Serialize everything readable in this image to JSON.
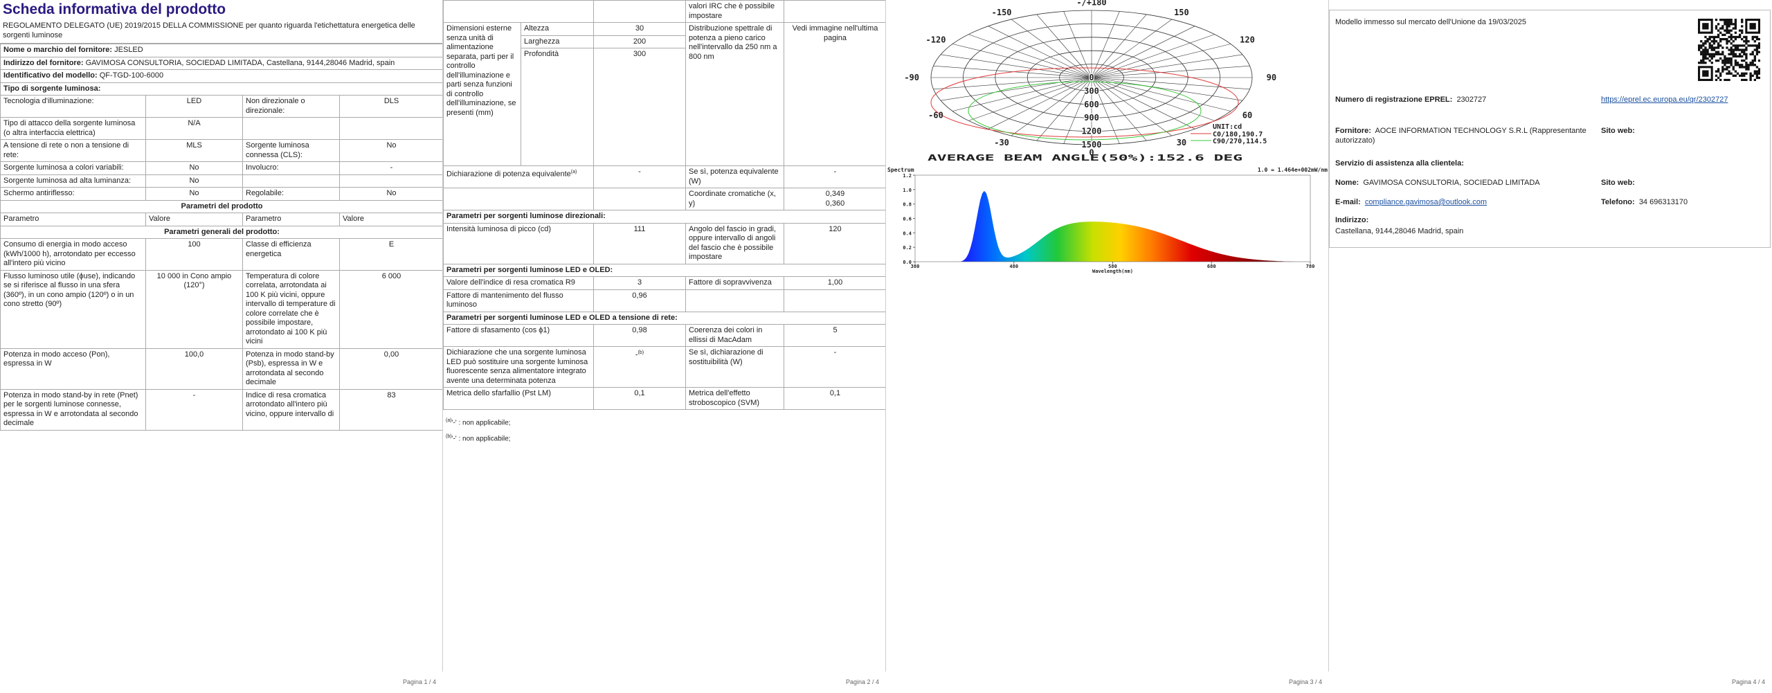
{
  "page1": {
    "title": "Scheda informativa del prodotto",
    "regulation": "REGOLAMENTO DELEGATO (UE) 2019/2015 DELLA COMMISSIONE per quanto riguarda l'etichettatura energetica delle sorgenti luminose",
    "supplier": [
      [
        "Nome o marchio del fornitore:",
        "JESLED"
      ],
      [
        "Indirizzo del fornitore:",
        "GAVIMOSA CONSULTORIA, SOCIEDAD LIMITADA, Castellana, 9144,28046 Madrid, spain"
      ],
      [
        "Identificativo del modello:",
        "QF-TGD-100-6000"
      ]
    ],
    "rows": [
      [
        "Tipo di sorgente luminosa:"
      ],
      [
        "Tecnologia d'illuminazione:",
        "LED",
        "Non direzionale o direzionale:",
        "DLS"
      ],
      [
        "Tipo di attacco della sorgente luminosa\n(o altra interfaccia elettrica)",
        "N/A"
      ],
      [
        "A tensione di rete o non a tensione di rete:",
        "MLS",
        "Sorgente luminosa connessa (CLS):",
        "No"
      ],
      [
        "Sorgente luminosa a colori variabili:",
        "No",
        "Involucro:",
        "-"
      ],
      [
        "Sorgente luminosa ad alta luminanza:",
        "No"
      ],
      [
        "Schermo antiriflesso:",
        "No",
        "Regolabile:",
        "No"
      ],
      [
        "Parametri del prodotto"
      ],
      [
        "Parametro",
        "Valore",
        "Parametro",
        "Valore"
      ],
      [
        "Parametri generali del prodotto:"
      ],
      [
        "Consumo di energia in modo acceso (kWh/1000 h), arrotondato per eccesso all'intero più vicino",
        "100",
        "Classe di efficienza energetica",
        "E"
      ],
      [
        "Flusso luminoso utile (ϕuse), indicando se si riferisce al flusso in una sfera (360º), in un cono ampio (120º) o in un cono stretto (90º)",
        "10 000 in Cono ampio (120°)",
        "Temperatura di colore correlata, arrotondata ai 100 K più vicini, oppure intervallo di temperature di colore correlate che è possibile impostare, arrotondato ai 100 K più vicini",
        "6 000"
      ],
      [
        "Potenza in modo acceso (Pon), espressa in W",
        "100,0",
        "Potenza in modo stand-by (Psb), espressa in W e arrotondata al secondo decimale",
        "0,00"
      ],
      [
        "Potenza in modo stand-by in rete (Pnet) per le sorgenti luminose connesse, espressa in W e arrotondata al secondo decimale",
        "-",
        "Indice di resa cromatica arrotondato all'intero più vicino, oppure intervallo di",
        "83"
      ]
    ],
    "footer": "Pagina 1 / 4"
  },
  "page2": {
    "rows": [
      [
        "valori IRC che è possibile impostare"
      ],
      [
        "Dimensioni esterne senza unità di alimentazione separata, parti per il controllo dell'illuminazione e parti senza funzioni di controllo dell'illuminazione, se presenti (mm)",
        "Altezza",
        "30",
        "Larghezza",
        "200",
        "Profondità",
        "300",
        "Distribuzione spettrale di potenza a pieno carico nell'intervallo da 250 nm a 800 nm",
        "Vedi immagine nell'ultima pagina"
      ],
      [
        "Dichiarazione di potenza equivalente",
        "(a)",
        "-",
        "Se sì, potenza equivalente (W)",
        "-"
      ],
      [
        "Coordinate cromatiche (x, y)",
        "0,349\n0,360"
      ],
      [
        "Parametri per sorgenti luminose direzionali:"
      ],
      [
        "Intensità luminosa di picco (cd)",
        "111",
        "Angolo del fascio in gradi, oppure intervallo di angoli del fascio che è possibile impostare",
        "120"
      ],
      [
        "Parametri per sorgenti luminose LED e OLED:"
      ],
      [
        "Valore dell'indice di resa cromatica R9",
        "3",
        "Fattore di sopravvivenza",
        "1,00"
      ],
      [
        "Fattore di mantenimento del flusso luminoso",
        "0,96"
      ],
      [
        "Parametri per sorgenti luminose LED e OLED a tensione di rete:"
      ],
      [
        "Fattore di sfasamento (cos ϕ1)",
        "0,98",
        "Coerenza dei colori in ellissi di MacAdam",
        "5"
      ],
      [
        "Dichiarazione che una sorgente luminosa LED può sostituire una sorgente luminosa fluorescente senza alimentatore integrato avente una determinata potenza",
        "-",
        "(b)",
        "Se sì, dichiarazione di sostituibilità (W)",
        "-"
      ],
      [
        "Metrica dello sfarfallio (Pst LM)",
        "0,1",
        "Metrica dell'effetto stroboscopico (SVM)",
        "0,1"
      ]
    ],
    "notes": [
      [
        "(a)",
        "'-' : non applicabile;"
      ],
      [
        "(b)",
        "'-' : non applicabile;"
      ]
    ],
    "footer": "Pagina 2 / 4"
  },
  "page3": {
    "polar": {
      "angle_labels": [
        "-/+180",
        "150",
        "120",
        "90",
        "60",
        "30",
        "0",
        "-30",
        "-60",
        "-90",
        "-120",
        "-150"
      ],
      "radial_labels": [
        "0",
        "300",
        "600",
        "900",
        "1200",
        "1500"
      ],
      "unit": "UNIT:cd",
      "legend": [
        "C0/180,190.7",
        "C90/270,114.5"
      ],
      "caption": "AVERAGE BEAM ANGLE(50%):152.6 DEG"
    },
    "spectrum": {
      "title": "Spectrum",
      "scale": "1.0 = 1.464e+002mW/nm",
      "yticks": [
        "1.2",
        "1.0",
        "0.8",
        "0.6",
        "0.4",
        "0.2",
        "0.0"
      ],
      "xticks": [
        "380",
        "480",
        "580",
        "680",
        "780"
      ],
      "xlabel": "Wavelength(nm)"
    },
    "footer": "Pagina 3 / 4"
  },
  "page4": {
    "market": "Modello immesso sul mercato dell'Unione da 19/03/2025",
    "eprel_label": "Numero di registrazione EPREL:",
    "eprel": "2302727",
    "eprel_link": "https://eprel.ec.europa.eu/qr/2302727",
    "supplier_label": "Fornitore:",
    "supplier": "AOCE INFORMATION TECHNOLOGY S.R.L (Rappresentante autorizzato)",
    "website_label": "Sito web:",
    "service": "Servizio di assistenza alla clientela:",
    "name_label": "Nome:",
    "name": "GAVIMOSA CONSULTORIA, SOCIEDAD LIMITADA",
    "website_label_2": "Sito web:",
    "email_label": "E-mail:",
    "email": "compliance.gavimosa@outlook.com",
    "phone_label": "Telefono:",
    "phone": "34 696313170",
    "address_label": "Indirizzo:",
    "address": "Castellana, 9144,28046 Madrid, spain",
    "footer": "Pagina 4 / 4"
  }
}
